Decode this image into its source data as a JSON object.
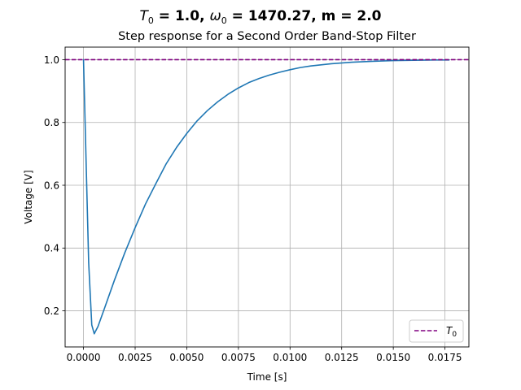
{
  "figure": {
    "suptitle": {
      "pre": "T",
      "sub0": "0",
      "mid": " = 1.0, ",
      "omega": "ω",
      "sub1": "0",
      "post": " = 1470.27, m = 2.0"
    }
  },
  "chart_data": {
    "type": "line",
    "title": "Step response for a Second Order Band-Stop Filter",
    "xlabel": "Time [s]",
    "ylabel": "Voltage [V]",
    "xlim": [
      -0.00089,
      0.01866
    ],
    "ylim": [
      0.085,
      1.04
    ],
    "xticks": [
      0.0,
      0.0025,
      0.005,
      0.0075,
      0.01,
      0.0125,
      0.015,
      0.0175
    ],
    "xtick_labels": [
      "0.0000",
      "0.0025",
      "0.0050",
      "0.0075",
      "0.0100",
      "0.0125",
      "0.0150",
      "0.0175"
    ],
    "yticks": [
      0.2,
      0.4,
      0.6,
      0.8,
      1.0
    ],
    "ytick_labels": [
      "0.2",
      "0.4",
      "0.6",
      "0.8",
      "1.0"
    ],
    "grid": true,
    "legend_position": "bottom-right",
    "series": [
      {
        "kind": "line",
        "color": "#1f77b4",
        "points": [
          [
            0.0,
            1.0
          ],
          [
            0.00025,
            0.354
          ],
          [
            0.0004,
            0.155
          ],
          [
            0.00052,
            0.127
          ],
          [
            0.0007,
            0.15
          ],
          [
            0.001,
            0.205
          ],
          [
            0.0015,
            0.298
          ],
          [
            0.002,
            0.385
          ],
          [
            0.0025,
            0.465
          ],
          [
            0.003,
            0.54
          ],
          [
            0.0035,
            0.605
          ],
          [
            0.004,
            0.668
          ],
          [
            0.0045,
            0.72
          ],
          [
            0.005,
            0.765
          ],
          [
            0.0055,
            0.805
          ],
          [
            0.006,
            0.838
          ],
          [
            0.0065,
            0.866
          ],
          [
            0.007,
            0.89
          ],
          [
            0.0075,
            0.91
          ],
          [
            0.008,
            0.927
          ],
          [
            0.0085,
            0.94
          ],
          [
            0.009,
            0.951
          ],
          [
            0.0095,
            0.96
          ],
          [
            0.01,
            0.968
          ],
          [
            0.0105,
            0.975
          ],
          [
            0.011,
            0.98
          ],
          [
            0.012,
            0.987
          ],
          [
            0.013,
            0.992
          ],
          [
            0.014,
            0.995
          ],
          [
            0.015,
            0.997
          ],
          [
            0.016,
            0.998
          ],
          [
            0.017,
            0.999
          ],
          [
            0.0177,
            0.999
          ]
        ]
      },
      {
        "kind": "hline",
        "name": "T0",
        "legend_main": "T",
        "legend_sub": "0",
        "y": 1.0,
        "color": "#800080",
        "dashed": true
      }
    ]
  }
}
